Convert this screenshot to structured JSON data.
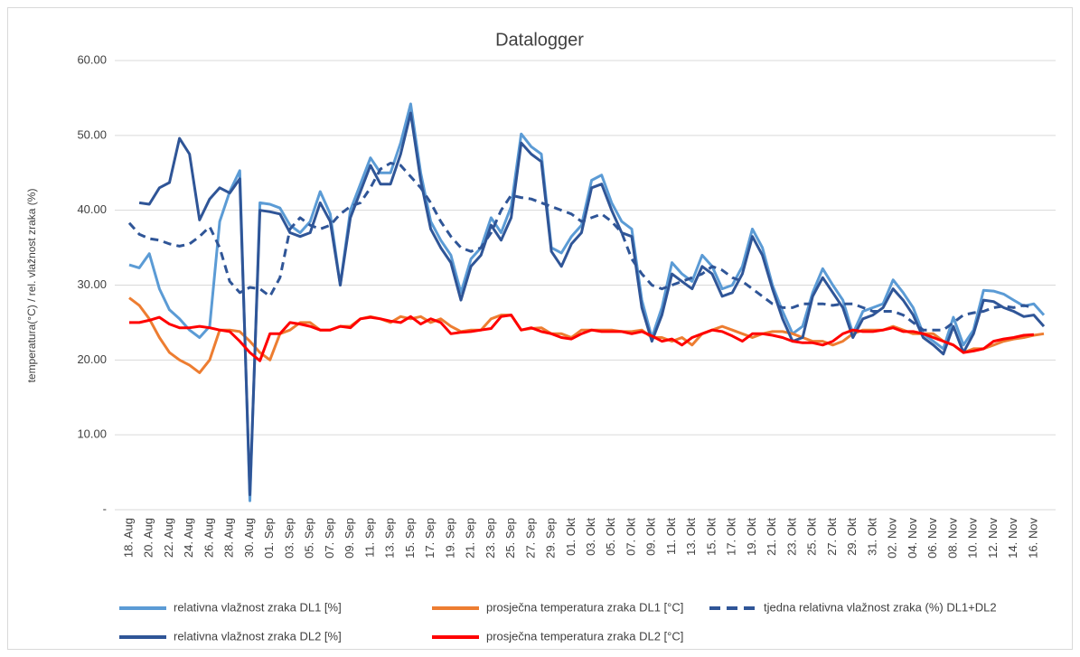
{
  "chart_data": {
    "type": "line",
    "title": "Datalogger",
    "y_label": "temperatura(°C) / rel. vlažnost zraka (%)",
    "categories": [
      "18. Aug",
      null,
      "20. Aug",
      null,
      "22. Aug",
      null,
      "24. Aug",
      null,
      "26. Aug",
      null,
      "28. Aug",
      null,
      "30. Aug",
      null,
      "01. Sep",
      null,
      "03. Sep",
      null,
      "05. Sep",
      null,
      "07. Sep",
      null,
      "09. Sep",
      null,
      "11. Sep",
      null,
      "13. Sep",
      null,
      "15. Sep",
      null,
      "17. Sep",
      null,
      "19. Sep",
      null,
      "21. Sep",
      null,
      "23. Sep",
      null,
      "25. Sep",
      null,
      "27. Sep",
      null,
      "29. Sep",
      null,
      "01. Okt",
      null,
      "03. Okt",
      null,
      "05. Okt",
      null,
      "07. Okt",
      null,
      "09. Okt",
      null,
      "11. Okt",
      null,
      "13. Okt",
      null,
      "15. Okt",
      null,
      "17. Okt",
      null,
      "19. Okt",
      null,
      "21. Okt",
      null,
      "23. Okt",
      null,
      "25. Okt",
      null,
      "27. Okt",
      null,
      "29. Okt",
      null,
      "31. Okt",
      null,
      "02. Nov",
      null,
      "04. Nov",
      null,
      "06. Nov",
      null,
      "08. Nov",
      null,
      "10. Nov",
      null,
      "12. Nov",
      null,
      "14. Nov",
      null,
      "16. Nov",
      null
    ],
    "ylim": [
      0,
      60
    ],
    "yticks": [
      {
        "value": 0,
        "label": "-"
      },
      {
        "value": 10,
        "label": "10.00"
      },
      {
        "value": 20,
        "label": "20.00"
      },
      {
        "value": 30,
        "label": "30.00"
      },
      {
        "value": 40,
        "label": "40.00"
      },
      {
        "value": 50,
        "label": "50.00"
      },
      {
        "value": 60,
        "label": "60.00"
      }
    ],
    "grid": true,
    "legend": "bottom",
    "series": [
      {
        "name": "relativna vlažnost zraka DL1 [%]",
        "color": "#5b9bd5",
        "values": [
          32.7,
          32.3,
          34.2,
          29.5,
          26.7,
          25.5,
          24.0,
          23.0,
          24.5,
          38.5,
          42.5,
          45.3,
          1.2,
          41.0,
          40.8,
          40.3,
          38.0,
          37.0,
          38.5,
          42.5,
          39.5,
          30.0,
          40.0,
          43.5,
          47.0,
          45.0,
          45.0,
          49.0,
          54.2,
          45.0,
          38.5,
          36.0,
          34.0,
          29.0,
          33.5,
          35.0,
          39.0,
          37.0,
          40.5,
          50.2,
          48.5,
          47.5,
          35.0,
          34.3,
          36.5,
          38.0,
          44.0,
          44.7,
          41.0,
          38.5,
          37.5,
          28.0,
          23.0,
          27.0,
          33.0,
          31.5,
          30.5,
          34.0,
          32.5,
          29.5,
          30.0,
          32.5,
          37.5,
          35.0,
          30.0,
          26.5,
          23.5,
          24.5,
          29.0,
          32.2,
          30.0,
          28.0,
          23.5,
          26.5,
          27.0,
          27.5,
          30.7,
          29.0,
          27.0,
          23.5,
          22.5,
          21.5,
          25.7,
          22.0,
          24.0,
          29.3,
          29.2,
          28.8,
          28.0,
          27.2,
          27.5,
          26.0
        ]
      },
      {
        "name": "prosječna temperatura zraka DL1 [°C]",
        "color": "#ed7d31",
        "values": [
          28.3,
          27.3,
          25.5,
          23.0,
          21.0,
          20.0,
          19.3,
          18.3,
          20.0,
          24.0,
          24.0,
          23.8,
          22.5,
          21.0,
          20.0,
          23.5,
          24.0,
          25.0,
          25.0,
          24.0,
          24.0,
          24.5,
          24.5,
          25.5,
          25.8,
          25.5,
          25.0,
          25.8,
          25.5,
          25.8,
          25.0,
          25.5,
          24.5,
          23.8,
          24.0,
          24.0,
          25.5,
          26.0,
          26.0,
          24.0,
          24.2,
          24.3,
          23.5,
          23.5,
          23.0,
          24.0,
          24.0,
          24.0,
          24.0,
          23.8,
          23.8,
          24.0,
          23.0,
          23.0,
          22.5,
          23.0,
          22.0,
          23.5,
          24.0,
          24.5,
          24.0,
          23.5,
          23.0,
          23.5,
          23.8,
          23.8,
          23.5,
          23.0,
          22.5,
          22.5,
          22.0,
          22.5,
          23.5,
          24.0,
          24.0,
          24.0,
          24.5,
          24.0,
          23.5,
          23.5,
          23.5,
          22.5,
          22.0,
          21.0,
          21.5,
          21.5,
          22.0,
          22.5,
          22.8,
          23.0,
          23.3,
          23.5
        ]
      },
      {
        "name": "tjedna relativna vlažnost zraka (%) DL1+DL2",
        "color": "#2f5597",
        "dashed": true,
        "values": [
          38.3,
          36.8,
          36.2,
          36.0,
          35.5,
          35.2,
          35.5,
          36.5,
          37.8,
          35.0,
          30.5,
          29.0,
          29.7,
          29.5,
          28.5,
          31.0,
          37.5,
          39.0,
          38.0,
          37.5,
          38.0,
          39.5,
          40.5,
          41.0,
          43.0,
          45.5,
          46.3,
          46.0,
          44.5,
          43.0,
          41.0,
          38.5,
          36.5,
          35.0,
          34.5,
          35.0,
          37.0,
          40.0,
          42.0,
          41.7,
          41.5,
          41.0,
          40.5,
          40.0,
          39.5,
          38.5,
          39.0,
          39.5,
          38.5,
          37.0,
          33.5,
          31.5,
          30.0,
          29.5,
          30.0,
          30.5,
          31.0,
          31.5,
          32.5,
          32.0,
          31.0,
          30.5,
          29.5,
          28.5,
          27.5,
          27.0,
          27.0,
          27.5,
          27.5,
          27.5,
          27.3,
          27.5,
          27.5,
          27.0,
          26.5,
          26.5,
          26.5,
          26.0,
          25.0,
          24.0,
          24.0,
          24.0,
          25.0,
          26.0,
          26.3,
          26.5,
          27.0,
          27.2,
          27.0,
          27.3,
          27.0,
          null
        ]
      },
      {
        "name": "relativna vlažnost zraka DL2 [%]",
        "color": "#2f5597",
        "values": [
          null,
          41.0,
          40.8,
          43.0,
          43.7,
          49.6,
          47.5,
          38.7,
          41.5,
          43.0,
          42.3,
          44.2,
          2.0,
          40.0,
          39.8,
          39.5,
          37.0,
          36.5,
          37.0,
          41.0,
          38.5,
          30.0,
          39.0,
          42.5,
          46.0,
          43.5,
          43.5,
          47.5,
          53.0,
          44.0,
          37.5,
          35.0,
          33.0,
          28.0,
          32.5,
          34.0,
          38.0,
          36.0,
          39.0,
          49.0,
          47.5,
          46.5,
          34.5,
          32.5,
          35.5,
          37.0,
          43.0,
          43.5,
          40.0,
          37.0,
          36.5,
          27.0,
          22.5,
          26.0,
          31.5,
          30.5,
          29.5,
          32.5,
          31.5,
          28.5,
          29.0,
          31.5,
          36.5,
          34.0,
          29.5,
          25.5,
          22.5,
          23.0,
          28.5,
          31.0,
          29.0,
          27.0,
          23.0,
          25.5,
          26.0,
          27.0,
          29.5,
          28.0,
          26.0,
          23.0,
          22.0,
          20.8,
          24.5,
          21.0,
          23.5,
          28.0,
          27.8,
          27.0,
          26.5,
          25.8,
          26.0,
          24.5
        ]
      },
      {
        "name": "prosječna temperatura zraka DL2 [°C]",
        "color": "#ff0000",
        "values": [
          25.0,
          25.0,
          25.3,
          25.7,
          24.8,
          24.3,
          24.3,
          24.5,
          24.3,
          24.0,
          23.8,
          22.5,
          21.0,
          19.9,
          23.5,
          23.5,
          25.0,
          24.8,
          24.5,
          24.0,
          24.0,
          24.5,
          24.3,
          25.5,
          25.7,
          25.5,
          25.2,
          25.0,
          25.8,
          24.8,
          25.5,
          25.0,
          23.5,
          23.7,
          23.8,
          24.0,
          24.2,
          25.8,
          26.0,
          24.0,
          24.3,
          23.8,
          23.5,
          23.0,
          22.8,
          23.5,
          24.0,
          23.8,
          23.8,
          23.8,
          23.5,
          23.8,
          23.2,
          22.5,
          22.8,
          22.0,
          23.0,
          23.5,
          24.0,
          23.8,
          23.2,
          22.5,
          23.5,
          23.5,
          23.3,
          23.0,
          22.5,
          22.3,
          22.3,
          22.0,
          22.5,
          23.5,
          24.0,
          23.8,
          23.8,
          24.0,
          24.3,
          23.8,
          23.8,
          23.5,
          23.0,
          22.5,
          22.0,
          21.0,
          21.2,
          21.5,
          22.5,
          22.8,
          23.0,
          23.3,
          23.4,
          null
        ]
      }
    ]
  }
}
